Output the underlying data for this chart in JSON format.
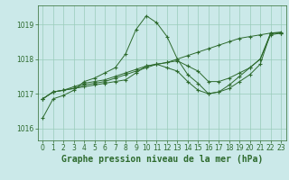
{
  "title": "Graphe pression niveau de la mer (hPa)",
  "bg_color": "#cbe9e9",
  "grid_color": "#99ccbb",
  "line_color": "#2d6a2d",
  "marker": "+",
  "xlim": [
    -0.5,
    23.5
  ],
  "ylim": [
    1015.65,
    1019.55
  ],
  "yticks": [
    1016,
    1017,
    1018,
    1019
  ],
  "xticks": [
    0,
    1,
    2,
    3,
    4,
    5,
    6,
    7,
    8,
    9,
    10,
    11,
    12,
    13,
    14,
    15,
    16,
    17,
    18,
    19,
    20,
    21,
    22,
    23
  ],
  "series": [
    [
      1016.3,
      1016.85,
      1016.95,
      1017.1,
      1017.35,
      1017.45,
      1017.6,
      1017.75,
      1018.15,
      1018.85,
      1019.25,
      1019.05,
      1018.65,
      1018.0,
      1017.55,
      1017.3,
      1017.0,
      1017.05,
      1017.25,
      1017.5,
      1017.75,
      1018.0,
      1018.7,
      1018.75
    ],
    [
      1016.85,
      1017.05,
      1017.1,
      1017.15,
      1017.25,
      1017.3,
      1017.35,
      1017.45,
      1017.55,
      1017.65,
      1017.75,
      1017.85,
      1017.9,
      1018.0,
      1018.1,
      1018.2,
      1018.3,
      1018.4,
      1018.5,
      1018.6,
      1018.65,
      1018.7,
      1018.75,
      1018.78
    ],
    [
      1016.85,
      1017.05,
      1017.1,
      1017.15,
      1017.2,
      1017.25,
      1017.3,
      1017.35,
      1017.4,
      1017.6,
      1017.8,
      1017.85,
      1017.75,
      1017.65,
      1017.35,
      1017.1,
      1017.0,
      1017.05,
      1017.15,
      1017.35,
      1017.55,
      1017.85,
      1018.75,
      1018.75
    ],
    [
      1016.85,
      1017.05,
      1017.1,
      1017.2,
      1017.3,
      1017.35,
      1017.4,
      1017.5,
      1017.6,
      1017.7,
      1017.8,
      1017.85,
      1017.9,
      1017.95,
      1017.8,
      1017.65,
      1017.35,
      1017.35,
      1017.45,
      1017.6,
      1017.75,
      1018.0,
      1018.75,
      1018.75
    ]
  ],
  "title_fontsize": 7.0,
  "tick_fontsize": 5.5,
  "tick_color": "#2d6a2d"
}
